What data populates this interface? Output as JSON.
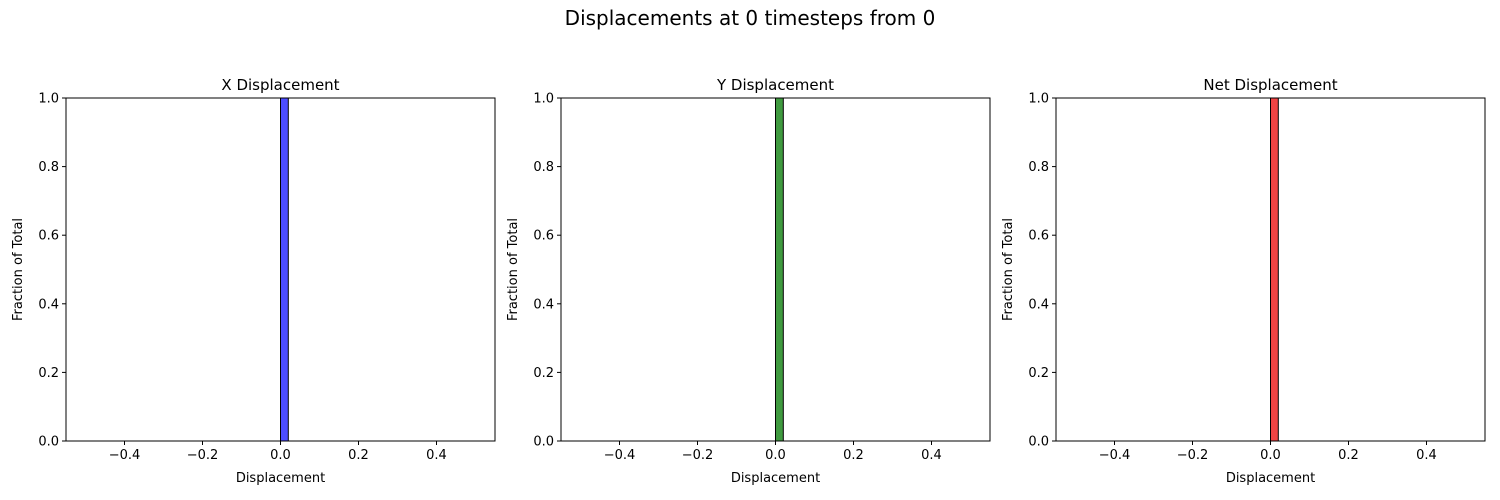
{
  "figure_title": "Displacements at 0 timesteps from 0",
  "chart_data": [
    {
      "type": "bar",
      "title": "X Displacement",
      "xlabel": "Displacement",
      "ylabel": "Fraction of Total",
      "xlim": [
        -0.55,
        0.55
      ],
      "ylim": [
        0,
        1.0
      ],
      "xticks": [
        "-0.4",
        "-0.2",
        "0.0",
        "0.2",
        "0.4"
      ],
      "yticks": [
        "0.0",
        "0.2",
        "0.4",
        "0.6",
        "0.8",
        "1.0"
      ],
      "bins": [
        {
          "x0": 0.0,
          "x1": 0.02,
          "value": 1.0
        }
      ],
      "color": "#4d4dff",
      "baseline_range": [
        -0.5,
        0.5
      ],
      "grid": false
    },
    {
      "type": "bar",
      "title": "Y Displacement",
      "xlabel": "Displacement",
      "ylabel": "Fraction of Total",
      "xlim": [
        -0.55,
        0.55
      ],
      "ylim": [
        0,
        1.0
      ],
      "xticks": [
        "-0.4",
        "-0.2",
        "0.0",
        "0.2",
        "0.4"
      ],
      "yticks": [
        "0.0",
        "0.2",
        "0.4",
        "0.6",
        "0.8",
        "1.0"
      ],
      "bins": [
        {
          "x0": 0.0,
          "x1": 0.02,
          "value": 1.0
        }
      ],
      "color": "#3f9a3f",
      "baseline_range": [
        -0.5,
        0.5
      ],
      "grid": false
    },
    {
      "type": "bar",
      "title": "Net Displacement",
      "xlabel": "Displacement",
      "ylabel": "Fraction of Total",
      "xlim": [
        -0.55,
        0.55
      ],
      "ylim": [
        0,
        1.0
      ],
      "xticks": [
        "-0.4",
        "-0.2",
        "0.0",
        "0.2",
        "0.4"
      ],
      "yticks": [
        "0.0",
        "0.2",
        "0.4",
        "0.6",
        "0.8",
        "1.0"
      ],
      "bins": [
        {
          "x0": 0.0,
          "x1": 0.02,
          "value": 1.0
        }
      ],
      "color": "#f04444",
      "baseline_range": [
        -0.5,
        0.5
      ],
      "grid": false
    }
  ]
}
